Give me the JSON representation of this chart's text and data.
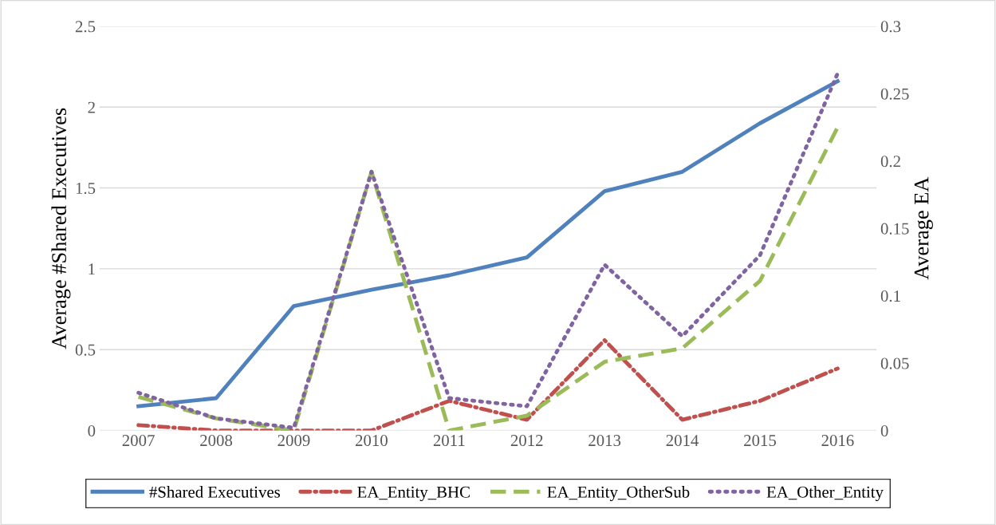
{
  "chart_data": {
    "type": "line",
    "ylabel": "Average #Shared Executives",
    "y2label": "Average EA",
    "categories": [
      "2007",
      "2008",
      "2009",
      "2010",
      "2011",
      "2012",
      "2013",
      "2014",
      "2015",
      "2016"
    ],
    "ylim": [
      0,
      2.5
    ],
    "yticks": [
      0,
      0.5,
      1,
      1.5,
      2,
      2.5
    ],
    "y2lim": [
      0,
      0.3
    ],
    "y2ticks": [
      0,
      0.05,
      0.1,
      0.15,
      0.2,
      0.25,
      0.3
    ],
    "grid": "y",
    "legend": "bottom",
    "marker": "none",
    "series": [
      {
        "name": "#Shared Executives",
        "color": "#4f81bd",
        "line_style": "solid",
        "values": [
          0.15,
          0.2,
          0.77,
          0.87,
          0.96,
          1.07,
          1.48,
          1.6,
          1.9,
          2.16
        ]
      },
      {
        "name": "EA_Entity_BHC",
        "color": "#c0504d",
        "line_style": "dashdot",
        "axis": "y2",
        "values": [
          0.004,
          0,
          0,
          0,
          0.022,
          0.008,
          0.067,
          0.008,
          0.022,
          0.046
        ]
      },
      {
        "name": "EA_Entity_OtherSub",
        "color": "#9bbb59",
        "line_style": "dashed",
        "axis": "y2",
        "values": [
          0.025,
          0.009,
          0,
          0.192,
          0,
          0.011,
          0.051,
          0.061,
          0.111,
          0.225
        ]
      },
      {
        "name": "EA_Other_Entity",
        "color": "#8064a2",
        "line_style": "dotted",
        "axis": "y2",
        "values": [
          0.028,
          0.009,
          0.002,
          0.192,
          0.024,
          0.018,
          0.123,
          0.07,
          0.13,
          0.265
        ]
      }
    ]
  }
}
